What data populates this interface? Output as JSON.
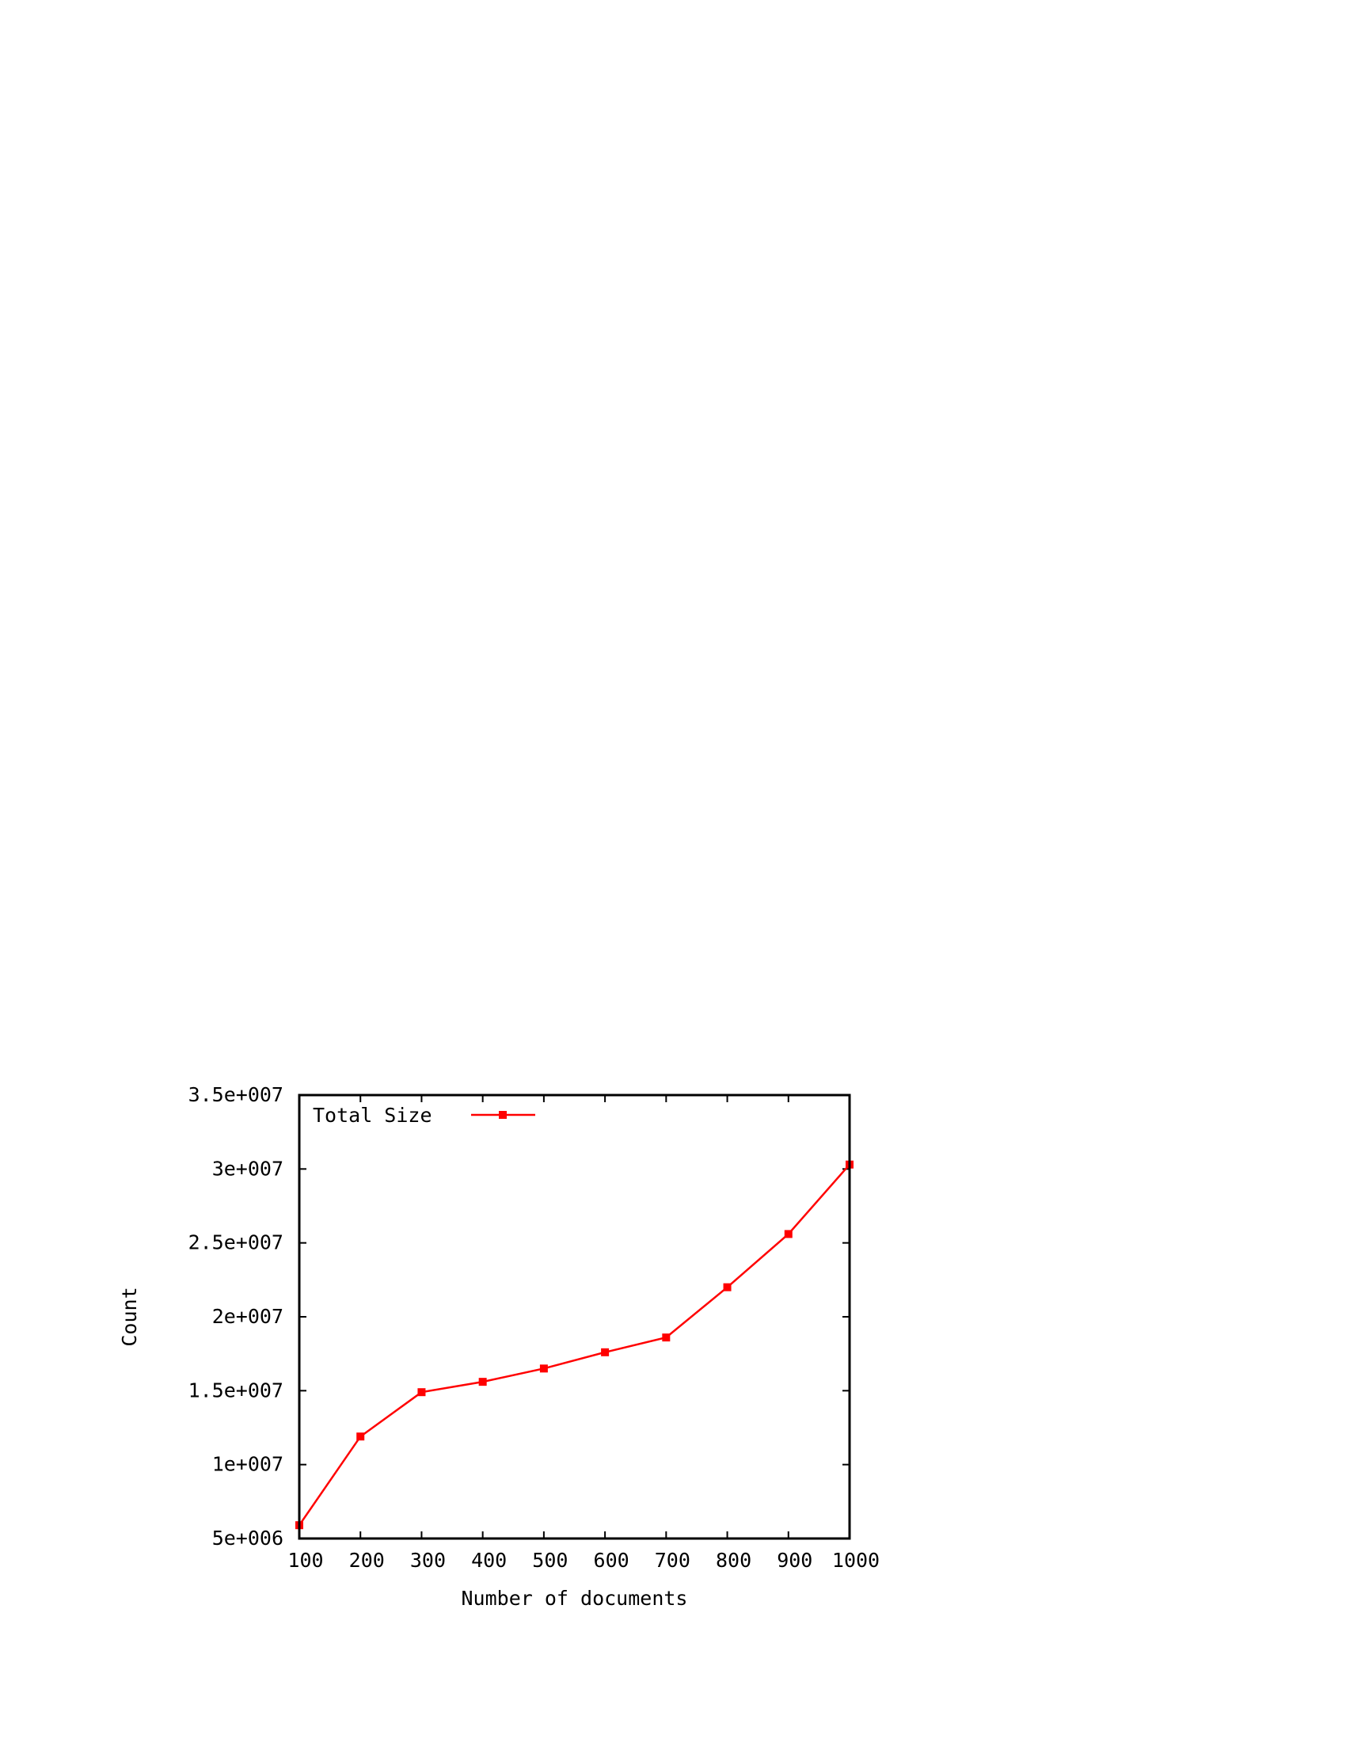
{
  "chart_data": {
    "type": "line",
    "title": "",
    "xlabel": "Number of documents",
    "ylabel": "Count",
    "x": [
      100,
      200,
      300,
      400,
      500,
      600,
      700,
      800,
      900,
      1000
    ],
    "series": [
      {
        "name": "Total Size",
        "color": "#ff0000",
        "marker": "square",
        "values": [
          5900000,
          11900000,
          14900000,
          15600000,
          16500000,
          17600000,
          18600000,
          22000000,
          25600000,
          30300000
        ]
      }
    ],
    "xlim": [
      100,
      1000
    ],
    "ylim": [
      5000000,
      35000000
    ],
    "x_ticks": [
      100,
      200,
      300,
      400,
      500,
      600,
      700,
      800,
      900,
      1000
    ],
    "x_tick_labels": [
      "100",
      "200",
      "300",
      "400",
      "500",
      "600",
      "700",
      "800",
      "900",
      "1000"
    ],
    "y_ticks": [
      5000000,
      10000000,
      15000000,
      20000000,
      25000000,
      30000000,
      35000000
    ],
    "y_tick_labels": [
      "5e+006",
      "1e+007",
      "1.5e+007",
      "2e+007",
      "2.5e+007",
      "3e+007",
      "3.5e+007"
    ],
    "grid": false,
    "legend_position": "top-left"
  }
}
